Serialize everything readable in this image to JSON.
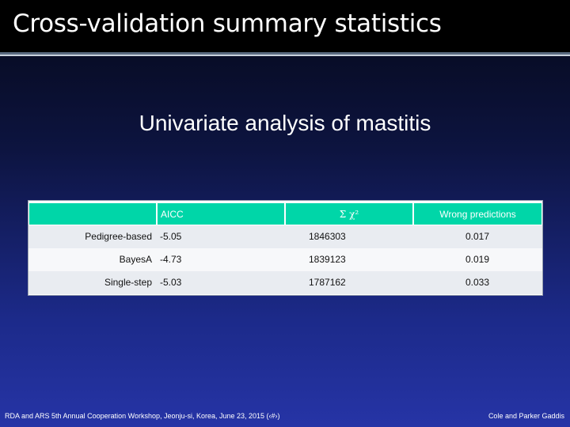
{
  "slide": {
    "title": "Cross-validation summary statistics",
    "subtitle": "Univariate analysis of mastitis"
  },
  "table": {
    "headers": [
      "",
      "AICC",
      "Σ χ²",
      "Wrong predictions"
    ],
    "rows": [
      [
        "Pedigree-based",
        "-5.05",
        "1846303",
        "0.017"
      ],
      [
        "BayesA",
        "-4.73",
        "1839123",
        "0.019"
      ],
      [
        "Single-step",
        "-5.03",
        "1787162",
        "0.033"
      ]
    ]
  },
  "footer": {
    "left": "RDA and ARS 5th Annual Cooperation Workshop, Jeonju-si, Korea, June 23, 2015 (‹#›)",
    "right": "Cole and Parker Gaddis"
  },
  "colors": {
    "header_fill": "#00d6a8",
    "title_bar": "#000000",
    "background_bottom": "#2634a6"
  }
}
